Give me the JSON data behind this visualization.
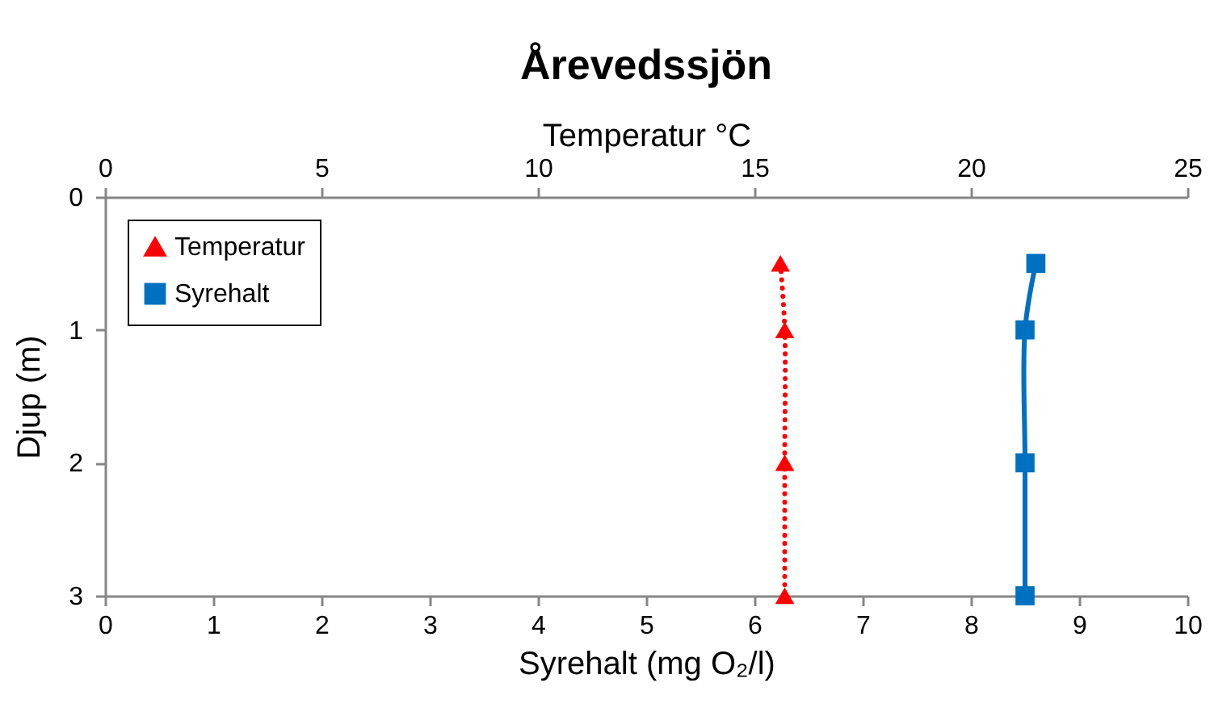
{
  "chart_data": {
    "type": "line",
    "title": "Årevedssjön",
    "xlabel": "Syrehalt (mg O₂/l)",
    "x2label": "Temperatur °C",
    "ylabel": "Djup (m)",
    "xlim": [
      0,
      10
    ],
    "xticks": [
      0,
      1,
      2,
      3,
      4,
      5,
      6,
      7,
      8,
      9,
      10
    ],
    "x2lim": [
      0,
      25
    ],
    "x2ticks": [
      0,
      5,
      10,
      15,
      20,
      25
    ],
    "ylim": [
      3,
      0
    ],
    "yticks": [
      0,
      1,
      2,
      3
    ],
    "grid": false,
    "legend": "top left",
    "series": [
      {
        "name": "Temperatur",
        "color": "#ff0000",
        "axis": "x2",
        "x": [
          15.6,
          15.7,
          15.7,
          15.7
        ],
        "values": [
          0.5,
          1,
          2,
          3
        ],
        "marker": "triangle",
        "line_style": "dotted"
      },
      {
        "name": "Syrehalt",
        "color": "#0070c0",
        "x": [
          8.6,
          8.5,
          8.5,
          8.5
        ],
        "values": [
          0.5,
          1,
          2,
          3
        ],
        "marker": "square",
        "line_style": "solid"
      }
    ]
  }
}
